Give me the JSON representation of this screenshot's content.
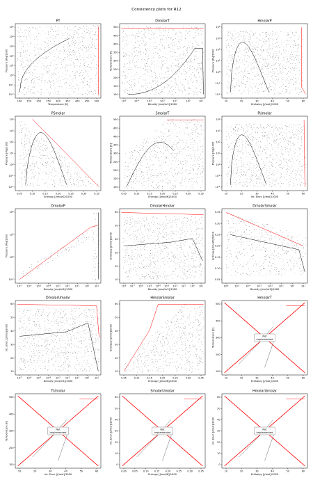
{
  "figure_title": "Consistency plots for R12",
  "colors": {
    "dots": "#222222",
    "saturation": "#000000",
    "edge": "#ff0000",
    "frame": "#000000"
  },
  "chart_data": [
    {
      "title": "PT",
      "type": "scatter",
      "xlabel": "Temperature [K]",
      "ylabel": "Pressure [Pa]/1000",
      "xticks": [
        "100",
        "150",
        "200",
        "250",
        "300",
        "350",
        "400",
        "450",
        "500"
      ],
      "yticks": [
        "10^-2",
        "10^-1",
        "10^0",
        "10^1",
        "10^2",
        "10^3",
        "10^4",
        "10^5"
      ],
      "xlim": [
        100,
        530
      ],
      "ylim": [
        0.005,
        200000
      ],
      "yscale": "log",
      "implemented": true
    },
    {
      "title": "DmolarT",
      "type": "scatter",
      "xlabel": "Density [mol/m3]/1000",
      "ylabel": "Temperature [K]",
      "xticks": [
        "10^-5",
        "10^-4",
        "10^-3",
        "10^-2",
        "10^-1",
        "10^0",
        "10^1"
      ],
      "yticks": [
        "100",
        "150",
        "200",
        "250",
        "300",
        "350",
        "400",
        "450",
        "500"
      ],
      "xlim": [
        5e-06,
        15
      ],
      "ylim": [
        100,
        530
      ],
      "xscale": "log",
      "implemented": true
    },
    {
      "title": "HmolarP",
      "type": "scatter",
      "xlabel": "Enthalpy [J/mol]/1000",
      "ylabel": "Pressure [Pa]/1000",
      "xticks": [
        "10",
        "20",
        "30",
        "40",
        "50",
        "60"
      ],
      "yticks": [
        "10^-2",
        "10^-1",
        "10^0",
        "10^1",
        "10^2",
        "10^3",
        "10^4"
      ],
      "xlim": [
        5,
        65
      ],
      "ylim": [
        0.005,
        50000
      ],
      "yscale": "log",
      "implemented": true
    },
    {
      "title": "PSmolar",
      "type": "scatter",
      "xlabel": "Entropy [J/mol/K]/1000",
      "ylabel": "Pressure [Pa]/1000",
      "xticks": [
        "0.05",
        "0.10",
        "0.15",
        "0.20",
        "0.25",
        "0.30",
        "0.35"
      ],
      "yticks": [
        "10^-2",
        "10^-1",
        "10^0",
        "10^1",
        "10^2",
        "10^3",
        "10^4"
      ],
      "xlim": [
        0.02,
        0.38
      ],
      "ylim": [
        0.005,
        50000
      ],
      "yscale": "log",
      "implemented": true
    },
    {
      "title": "SmolarT",
      "type": "scatter",
      "xlabel": "Entropy [J/mol/K]/1000",
      "ylabel": "Temperature [K]",
      "xticks": [
        "0.05",
        "0.10",
        "0.15",
        "0.20",
        "0.25",
        "0.30",
        "0.35"
      ],
      "yticks": [
        "100",
        "150",
        "200",
        "250",
        "300",
        "350",
        "400",
        "450",
        "500"
      ],
      "xlim": [
        0.02,
        0.38
      ],
      "ylim": [
        100,
        530
      ],
      "implemented": true
    },
    {
      "title": "PUmolar",
      "type": "scatter",
      "xlabel": "Int. Ener. [J/mol]/1000",
      "ylabel": "Pressure [Pa]/1000",
      "xticks": [
        "10",
        "20",
        "30",
        "40",
        "50",
        "60"
      ],
      "yticks": [
        "10^-2",
        "10^-1",
        "10^0",
        "10^1",
        "10^2",
        "10^3",
        "10^4"
      ],
      "xlim": [
        5,
        63
      ],
      "ylim": [
        0.005,
        50000
      ],
      "yscale": "log",
      "implemented": true
    },
    {
      "title": "DmolarP",
      "type": "scatter",
      "xlabel": "Density [mol/m3]/1000",
      "ylabel": "Pressure [Pa]/1000",
      "xticks": [
        "10^-7",
        "10^-6",
        "10^-5",
        "10^-4",
        "10^-3",
        "10^-2",
        "10^-1",
        "10^0",
        "10^1"
      ],
      "yticks": [
        "10^-2",
        "10^0",
        "10^2",
        "10^4"
      ],
      "xlim": [
        5e-08,
        15
      ],
      "ylim": [
        0.005,
        200000
      ],
      "xscale": "log",
      "yscale": "log",
      "implemented": true
    },
    {
      "title": "DmolarHmolar",
      "type": "scatter",
      "xlabel": "Density [mol/m3]/1000",
      "ylabel": "Enthalpy [J/mol]/1000",
      "xticks": [
        "10^-8",
        "10^-7",
        "10^-6",
        "10^-5",
        "10^-4",
        "10^-3",
        "10^-2",
        "10^-1",
        "10^0",
        "10^1"
      ],
      "yticks": [
        "10",
        "20",
        "30",
        "40",
        "50",
        "60"
      ],
      "xlim": [
        5e-09,
        15
      ],
      "ylim": [
        5,
        66
      ],
      "xscale": "log",
      "implemented": true
    },
    {
      "title": "DmolarSmolar",
      "type": "scatter",
      "xlabel": "Density [mol/m3]/1000",
      "ylabel": "Entropy [J/mol/K]/1000",
      "xticks": [
        "10^-6",
        "10^-5",
        "10^-4",
        "10^-3",
        "10^-2",
        "10^-1",
        "10^0",
        "10^1"
      ],
      "yticks": [
        "0.05",
        "0.10",
        "0.15",
        "0.20",
        "0.25",
        "0.30",
        "0.35"
      ],
      "xlim": [
        5e-07,
        15
      ],
      "ylim": [
        0.02,
        0.37
      ],
      "xscale": "log",
      "implemented": true
    },
    {
      "title": "DmolarUmolar",
      "type": "scatter",
      "xlabel": "Density [mol/m3]/1000",
      "ylabel": "Int. Ener. [J/mol]/1000",
      "xticks": [
        "10^-7",
        "10^-6",
        "10^-5",
        "10^-4",
        "10^-3",
        "10^-2",
        "10^-1",
        "10^0",
        "10^1"
      ],
      "yticks": [
        "10",
        "20",
        "30",
        "40",
        "50",
        "60"
      ],
      "xlim": [
        5e-08,
        15
      ],
      "ylim": [
        5,
        62
      ],
      "xscale": "log",
      "implemented": true
    },
    {
      "title": "HmolarSmolar",
      "type": "scatter",
      "xlabel": "Entropy [J/mol/K]/1000",
      "ylabel": "Enthalpy [J/mol]/1000",
      "xticks": [
        "0.05",
        "0.10",
        "0.15",
        "0.20",
        "0.25",
        "0.30",
        "0.35"
      ],
      "yticks": [
        "10",
        "20",
        "30",
        "40",
        "50",
        "60"
      ],
      "xlim": [
        0.02,
        0.37
      ],
      "ylim": [
        5,
        66
      ],
      "implemented": true
    },
    {
      "title": "HmolarT",
      "type": "scatter",
      "xlabel": "Enthalpy [J/mol]/1000",
      "ylabel": "Temperature [K]",
      "xticks": [
        "10",
        "20",
        "30",
        "40",
        "50",
        "60"
      ],
      "yticks": [
        "100",
        "200",
        "300",
        "400",
        "500"
      ],
      "xlim": [
        5,
        67
      ],
      "ylim": [
        60,
        560
      ],
      "implemented": false,
      "status_text": "Not implemented"
    },
    {
      "title": "TUmolar",
      "type": "scatter",
      "xlabel": "Int. Ener. [J/mol]/1000",
      "ylabel": "Temperature [K]",
      "xticks": [
        "10",
        "20",
        "30",
        "40",
        "50",
        "60"
      ],
      "yticks": [
        "100",
        "200",
        "300",
        "400",
        "500"
      ],
      "xlim": [
        5,
        65
      ],
      "ylim": [
        60,
        560
      ],
      "implemented": false,
      "status_text": "Not implemented"
    },
    {
      "title": "SmolarUmolar",
      "type": "scatter",
      "xlabel": "Entropy [J/mol/K]/1000",
      "ylabel": "Int. Ener. [J/mol]/1000",
      "xticks": [
        "0.00",
        "0.05",
        "0.10",
        "0.15",
        "0.20",
        "0.25",
        "0.30",
        "0.35"
      ],
      "yticks": [
        "0",
        "10",
        "20",
        "30",
        "40",
        "50",
        "60"
      ],
      "xlim": [
        0.0,
        0.38
      ],
      "ylim": [
        -3,
        65
      ],
      "implemented": false,
      "status_text": "Not implemented"
    },
    {
      "title": "HmolarUmolar",
      "type": "scatter",
      "xlabel": "Enthalpy [J/mol]/1000",
      "ylabel": "Int. Ener. [J/mol]/1000",
      "xticks": [
        "10",
        "20",
        "30",
        "40",
        "50",
        "60"
      ],
      "yticks": [
        "0",
        "10",
        "20",
        "30",
        "40",
        "50",
        "60"
      ],
      "xlim": [
        5,
        67
      ],
      "ylim": [
        -3,
        65
      ],
      "implemented": false,
      "status_text": "Not implemented"
    }
  ]
}
